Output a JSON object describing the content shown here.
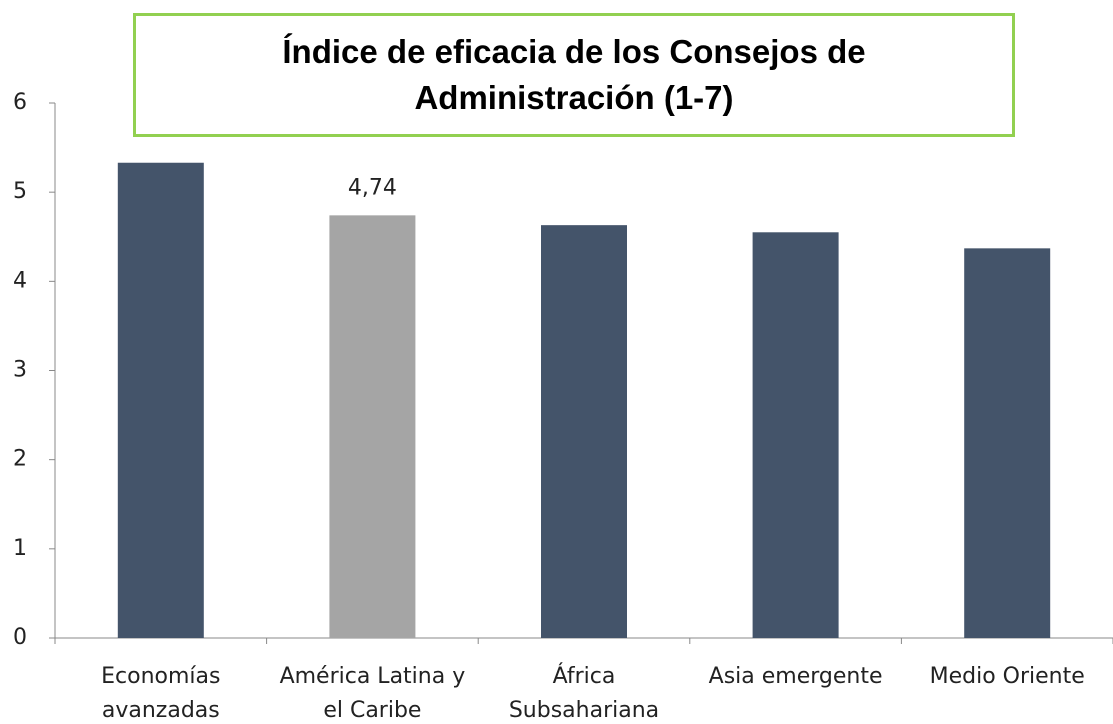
{
  "chart_data": {
    "type": "bar",
    "title": "Índice de eficacia de los Consejos de Administración (1-7)",
    "categories": [
      [
        "Economías",
        "avanzadas"
      ],
      [
        "América Latina y",
        "el Caribe"
      ],
      [
        "África",
        "Subsahariana"
      ],
      [
        "Asia emergente"
      ],
      [
        "Medio Oriente"
      ]
    ],
    "values": [
      5.33,
      4.74,
      4.63,
      4.55,
      4.37
    ],
    "value_labels": [
      null,
      "4,74",
      null,
      null,
      null
    ],
    "colors": [
      "#44546a",
      "#a5a5a5",
      "#44546a",
      "#44546a",
      "#44546a"
    ],
    "ylim": [
      0,
      6
    ],
    "yticks": [
      0,
      1,
      2,
      3,
      4,
      5,
      6
    ],
    "grid": false
  }
}
